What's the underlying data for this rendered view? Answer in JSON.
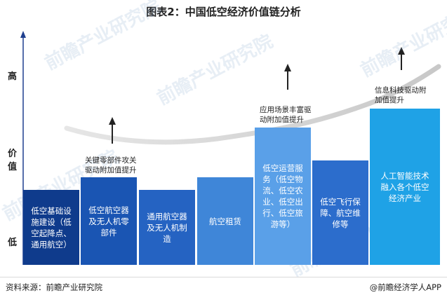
{
  "title": "图表2：中国低空经济价值链分析",
  "y_axis": {
    "high_label": "高",
    "value_label_1": "价",
    "value_label_2": "值",
    "low_label": "低"
  },
  "watermark": "前瞻产业研究院",
  "upgrade_notes": [
    {
      "line1": "关键零部件攻关",
      "line2": "驱动附加值提升"
    },
    {
      "line1": "应用场景丰富驱",
      "line2": "动附加值提升"
    },
    {
      "line1": "信息科技驱动附",
      "line2": "加值提升"
    }
  ],
  "segments": [
    {
      "lines": [
        "低空基础设",
        "施建设（低",
        "空起降点、",
        "通用航空）"
      ],
      "color": "#0f3b8c"
    },
    {
      "lines": [
        "低空航空器",
        "及无人机零",
        "部件"
      ],
      "color": "#1a55b3"
    },
    {
      "lines": [
        "通用航空器",
        "及无人机制",
        "造"
      ],
      "color": "#2563c2"
    },
    {
      "lines": [
        "航空租赁"
      ],
      "color": "#3f86d8"
    },
    {
      "lines": [
        "低空运营服",
        "务（低空物",
        "流、低空农",
        "业、低空出",
        "行、低空旅",
        "游等）"
      ],
      "color": "#5aa0e8"
    },
    {
      "lines": [
        "低空飞行保",
        "障、航空维",
        "修等"
      ],
      "color": "#2c6dcc"
    },
    {
      "lines": [
        "人工智能技术",
        "融入各个低空",
        "经济产业"
      ],
      "color": "#1fa2e6"
    }
  ],
  "footer": {
    "source": "资料来源：前瞻产业研究院",
    "brand": "@前瞻经济学人APP"
  }
}
